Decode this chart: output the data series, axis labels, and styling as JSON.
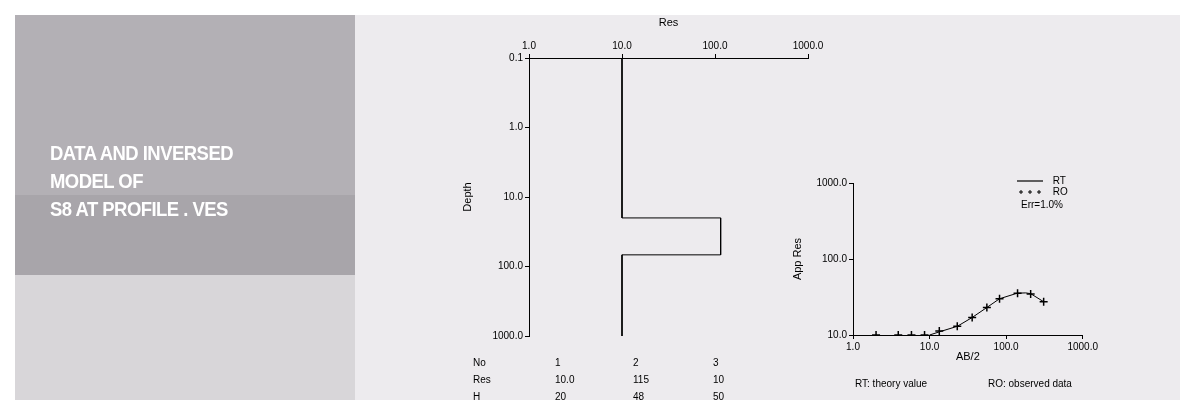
{
  "chart_data": [
    {
      "type": "other",
      "title": "DATA AND INVERSED\nMODEL OF\nS8 AT PROFILE . VES"
    },
    {
      "type": "line",
      "xlabel": "Res",
      "ylabel": "Depth",
      "log": "xy",
      "grid": false,
      "xlim": [
        1,
        1000
      ],
      "xticks": [
        {
          "value": 1,
          "label": "1.0"
        },
        {
          "value": 10,
          "label": "10.0"
        },
        {
          "value": 100,
          "label": "100.0"
        },
        {
          "value": 1000,
          "label": "1000.0"
        }
      ],
      "ylim": [
        1000,
        0.1
      ],
      "yticks": [
        0.1,
        {
          "value": 1,
          "label": "1.0"
        },
        {
          "value": 10,
          "label": "10.0"
        },
        {
          "value": 100,
          "label": "100.0"
        },
        {
          "value": 1000,
          "label": "1000.0"
        }
      ],
      "series": [
        {
          "color": "#000000",
          "x": [
            10,
            10,
            115,
            115,
            10,
            10
          ],
          "values": [
            0.1,
            20,
            20,
            68,
            68,
            1000
          ]
        }
      ],
      "annotations": [
        "No",
        "1",
        "2",
        "3",
        "Res",
        "10.0",
        "115",
        "10",
        "H",
        "20",
        "48",
        "50"
      ]
    },
    {
      "type": "line",
      "xlabel": "AB/2",
      "ylabel": "App Res",
      "log": "xy",
      "grid": false,
      "legend": "top right",
      "xlim": [
        1,
        1000
      ],
      "xticks": [
        {
          "value": 1,
          "label": "1.0"
        },
        {
          "value": 10,
          "label": "10.0"
        },
        {
          "value": 100,
          "label": "100.0"
        },
        {
          "value": 1000,
          "label": "1000.0"
        }
      ],
      "ylim": [
        10,
        1000
      ],
      "yticks": [
        {
          "value": 10,
          "label": "10.0"
        },
        {
          "value": 100,
          "label": "100.0"
        },
        {
          "value": 1000,
          "label": "1000.0"
        }
      ],
      "series": [
        {
          "name": "RT",
          "type": "line",
          "color": "#000000",
          "marker": "none",
          "x": [
            10,
            13.4,
            23,
            36,
            56,
            82,
            140,
            180,
            209,
            309
          ],
          "values": [
            10,
            11,
            13,
            17,
            23,
            30,
            35.5,
            35.8,
            35,
            27.4
          ]
        },
        {
          "name": "RO",
          "type": "scatter",
          "color": "#000000",
          "marker": "cross",
          "x": [
            2,
            3.9,
            5.8,
            8.6,
            13.4,
            23,
            36,
            56,
            82,
            141,
            209,
            309
          ],
          "values": [
            10,
            10,
            10,
            10,
            11.3,
            13,
            17,
            23,
            30,
            35.5,
            34.7,
            27.4
          ]
        }
      ],
      "annotations": [
        "Err=1.0%",
        "RT: theory value",
        "RO: observed data"
      ]
    }
  ]
}
